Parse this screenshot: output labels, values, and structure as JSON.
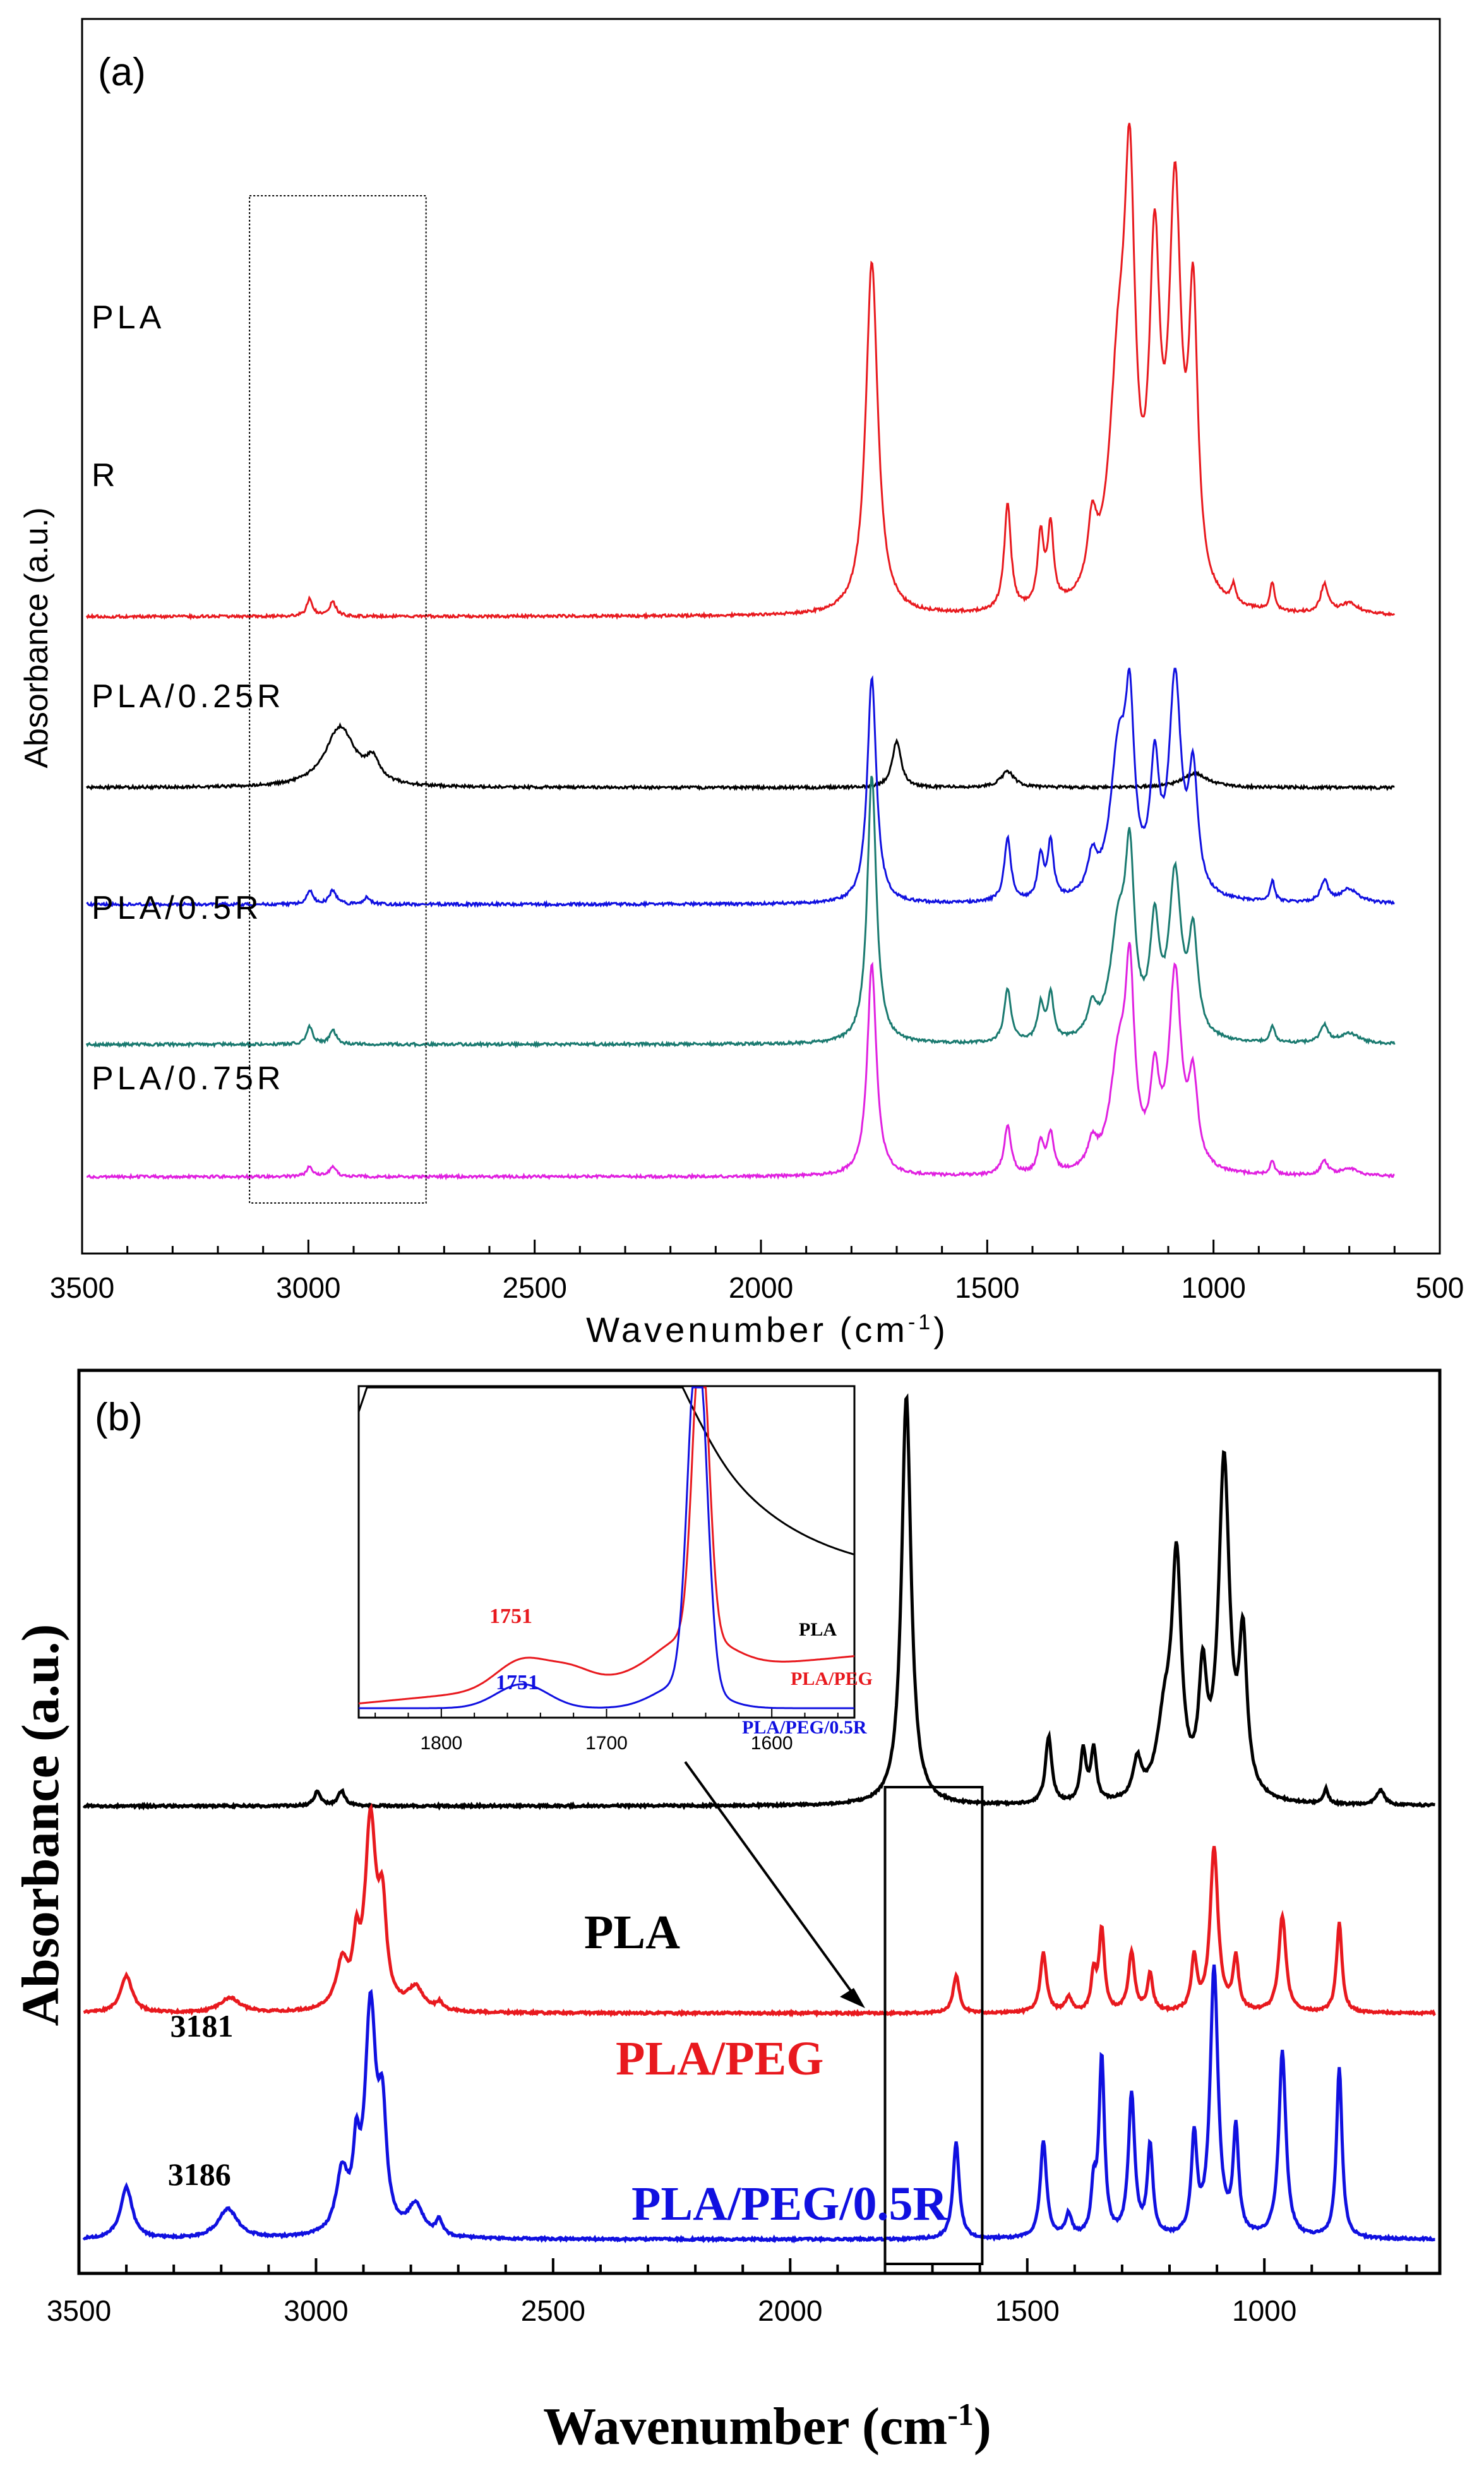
{
  "chart_data": [
    {
      "type": "line",
      "panel_label": "(a)",
      "xlabel_text": "Wavenumber (cm",
      "xlabel_sup": "-1",
      "xlabel_close": ")",
      "ylabel": "Absorbance (a.u.)",
      "xlim": [
        3500,
        500
      ],
      "xticks": [
        3500,
        3000,
        2500,
        2000,
        1500,
        1000,
        500
      ],
      "yticks_shown": false,
      "highlight_box_x": [
        3130,
        2740
      ],
      "series": [
        {
          "name": "PLA",
          "label": "PLA",
          "color": "#e8191e",
          "baseline": 0,
          "offset": 0.77,
          "peaks": [
            [
              2997,
              0.05,
              8
            ],
            [
              2946,
              0.04,
              9
            ],
            [
              1755,
              1.0,
              16
            ],
            [
              1455,
              0.3,
              9
            ],
            [
              1382,
              0.2,
              8
            ],
            [
              1360,
              0.22,
              8
            ],
            [
              1268,
              0.18,
              12
            ],
            [
              1210,
              0.6,
              25
            ],
            [
              1185,
              1.0,
              14
            ],
            [
              1130,
              0.9,
              14
            ],
            [
              1085,
              1.1,
              16
            ],
            [
              1045,
              0.8,
              12
            ],
            [
              956,
              0.05,
              6
            ],
            [
              870,
              0.08,
              6
            ],
            [
              755,
              0.08,
              10
            ],
            [
              700,
              0.03,
              25
            ]
          ],
          "clip_top": 0.98,
          "tail": -0.02
        },
        {
          "name": "R",
          "label": "R",
          "color": "#000000",
          "baseline": 0,
          "offset": 0.55,
          "peaks": [
            [
              2930,
              0.17,
              40
            ],
            [
              2858,
              0.06,
              18
            ],
            [
              1700,
              0.13,
              12
            ],
            [
              1455,
              0.045,
              18
            ],
            [
              1040,
              0.04,
              35
            ]
          ],
          "clip_top": 1.5,
          "tail": 0.0
        },
        {
          "name": "PLA/0.25R",
          "label": "PLA/0.25R",
          "color": "#1010e0",
          "baseline": 0,
          "offset": 0.4,
          "peaks": [
            [
              2997,
              0.04,
              8
            ],
            [
              2946,
              0.04,
              9
            ],
            [
              2870,
              0.02,
              8
            ],
            [
              1755,
              0.64,
              12
            ],
            [
              1455,
              0.18,
              9
            ],
            [
              1382,
              0.12,
              8
            ],
            [
              1360,
              0.16,
              8
            ],
            [
              1268,
              0.1,
              12
            ],
            [
              1210,
              0.4,
              22
            ],
            [
              1185,
              0.45,
              12
            ],
            [
              1130,
              0.34,
              12
            ],
            [
              1085,
              0.6,
              16
            ],
            [
              1045,
              0.33,
              12
            ],
            [
              870,
              0.06,
              6
            ],
            [
              755,
              0.06,
              10
            ],
            [
              700,
              0.04,
              25
            ]
          ],
          "clip_top": 1.5,
          "tail": -0.02
        },
        {
          "name": "PLA/0.5R",
          "label": "PLA/0.5R",
          "color": "#1a7a70",
          "baseline": 0,
          "offset": 0.22,
          "peaks": [
            [
              2997,
              0.05,
              8
            ],
            [
              2946,
              0.04,
              9
            ],
            [
              1755,
              0.76,
              12
            ],
            [
              1455,
              0.15,
              9
            ],
            [
              1382,
              0.1,
              8
            ],
            [
              1360,
              0.13,
              8
            ],
            [
              1268,
              0.08,
              12
            ],
            [
              1210,
              0.3,
              22
            ],
            [
              1185,
              0.45,
              12
            ],
            [
              1130,
              0.3,
              12
            ],
            [
              1085,
              0.45,
              16
            ],
            [
              1045,
              0.28,
              12
            ],
            [
              870,
              0.05,
              6
            ],
            [
              755,
              0.05,
              10
            ],
            [
              700,
              0.03,
              25
            ]
          ],
          "clip_top": 1.5,
          "tail": -0.02
        },
        {
          "name": "PLA/0.75R",
          "label": "PLA/0.75R",
          "color": "#e020e0",
          "baseline": 0,
          "offset": 0.05,
          "peaks": [
            [
              2997,
              0.03,
              8
            ],
            [
              2946,
              0.03,
              9
            ],
            [
              1755,
              0.6,
              12
            ],
            [
              1455,
              0.14,
              9
            ],
            [
              1382,
              0.09,
              8
            ],
            [
              1360,
              0.11,
              8
            ],
            [
              1268,
              0.07,
              12
            ],
            [
              1210,
              0.3,
              22
            ],
            [
              1185,
              0.5,
              12
            ],
            [
              1130,
              0.24,
              12
            ],
            [
              1085,
              0.55,
              16
            ],
            [
              1045,
              0.24,
              12
            ],
            [
              870,
              0.04,
              6
            ],
            [
              755,
              0.04,
              10
            ],
            [
              700,
              0.02,
              25
            ]
          ],
          "clip_top": 1.5,
          "tail": -0.02
        }
      ]
    },
    {
      "type": "line",
      "panel_label": "(b)",
      "xlabel_text": "Wavenumber (cm",
      "xlabel_sup": "-1",
      "xlabel_close": ")",
      "ylabel": "Absorbance (a.u.)",
      "xlim": [
        3500,
        630
      ],
      "xticks": [
        3500,
        3000,
        2500,
        2000,
        1500,
        1000
      ],
      "yticks_shown": false,
      "highlight_box_x": [
        1800,
        1595
      ],
      "series": [
        {
          "name": "PLA",
          "label": "PLA",
          "color": "#000000",
          "offset": 0.5,
          "peaks": [
            [
              2997,
              0.02,
              8
            ],
            [
              2946,
              0.02,
              9
            ],
            [
              1755,
              0.55,
              12
            ],
            [
              1455,
              0.09,
              8
            ],
            [
              1382,
              0.07,
              7
            ],
            [
              1360,
              0.07,
              7
            ],
            [
              1268,
              0.05,
              10
            ],
            [
              1210,
              0.1,
              20
            ],
            [
              1185,
              0.3,
              12
            ],
            [
              1130,
              0.15,
              10
            ],
            [
              1085,
              0.45,
              14
            ],
            [
              1045,
              0.2,
              10
            ],
            [
              870,
              0.02,
              6
            ],
            [
              755,
              0.02,
              10
            ]
          ]
        },
        {
          "name": "PLA/PEG",
          "label": "PLA/PEG",
          "color": "#e8191e",
          "offset": 0.26,
          "peaks": [
            [
              3400,
              0.05,
              15
            ],
            [
              3181,
              0.02,
              25
            ],
            [
              2945,
              0.06,
              15
            ],
            [
              2915,
              0.07,
              8
            ],
            [
              2885,
              0.25,
              14
            ],
            [
              2860,
              0.12,
              10
            ],
            [
              2790,
              0.03,
              20
            ],
            [
              2740,
              0.01,
              8
            ],
            [
              1650,
              0.05,
              8
            ],
            [
              1466,
              0.08,
              8
            ],
            [
              1413,
              0.02,
              8
            ],
            [
              1360,
              0.05,
              6
            ],
            [
              1343,
              0.11,
              7
            ],
            [
              1280,
              0.08,
              8
            ],
            [
              1241,
              0.05,
              7
            ],
            [
              1148,
              0.07,
              7
            ],
            [
              1106,
              0.22,
              10
            ],
            [
              1060,
              0.07,
              7
            ],
            [
              962,
              0.13,
              9
            ],
            [
              842,
              0.12,
              7
            ]
          ]
        },
        {
          "name": "PLA/PEG/0.5R",
          "label": "PLA/PEG/0.5R",
          "color": "#1010e0",
          "offset": 0.02,
          "peaks": [
            [
              3400,
              0.07,
              15
            ],
            [
              3186,
              0.04,
              25
            ],
            [
              2945,
              0.08,
              15
            ],
            [
              2915,
              0.09,
              8
            ],
            [
              2885,
              0.3,
              14
            ],
            [
              2860,
              0.14,
              10
            ],
            [
              2790,
              0.04,
              20
            ],
            [
              2740,
              0.02,
              8
            ],
            [
              1650,
              0.13,
              8
            ],
            [
              1466,
              0.13,
              8
            ],
            [
              1413,
              0.03,
              8
            ],
            [
              1360,
              0.06,
              6
            ],
            [
              1343,
              0.24,
              7
            ],
            [
              1280,
              0.19,
              8
            ],
            [
              1241,
              0.12,
              7
            ],
            [
              1148,
              0.13,
              7
            ],
            [
              1106,
              0.36,
              10
            ],
            [
              1060,
              0.14,
              7
            ],
            [
              962,
              0.25,
              9
            ],
            [
              842,
              0.23,
              7
            ]
          ]
        }
      ],
      "annotations": [
        {
          "text": "3181",
          "wavenumber": 3181,
          "series": "PLA/PEG"
        },
        {
          "text": "3186",
          "wavenumber": 3186,
          "series": "PLA/PEG/0.5R"
        }
      ],
      "inset": {
        "xlim": [
          1850,
          1550
        ],
        "xticks": [
          1800,
          1700,
          1600
        ],
        "series": [
          {
            "name": "PLA",
            "label": "PLA",
            "color": "#000000"
          },
          {
            "name": "PLA/PEG",
            "label": "PLA/PEG",
            "color": "#e8191e"
          },
          {
            "name": "PLA/PEG/0.5R",
            "label": "PLA/PEG/0.5R",
            "color": "#1010e0"
          }
        ],
        "annotations": [
          {
            "text": "1751",
            "series": "PLA/PEG",
            "color": "#e8191e"
          },
          {
            "text": "1751",
            "series": "PLA/PEG/0.5R",
            "color": "#1010e0"
          }
        ]
      }
    }
  ]
}
